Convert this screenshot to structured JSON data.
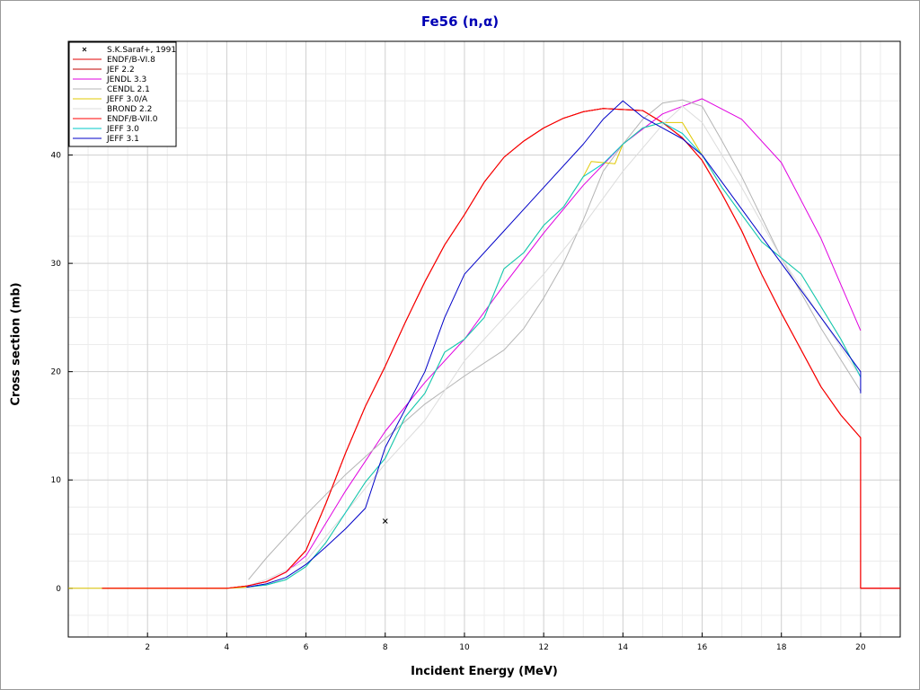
{
  "chart_data": {
    "type": "line",
    "title": "Fe56 (n,α)",
    "xlabel": "Incident Energy (MeV)",
    "ylabel": "Cross section (mb)",
    "xlim": [
      0,
      21
    ],
    "ylim": [
      -4.5,
      50.5
    ],
    "xticks": [
      2,
      4,
      6,
      8,
      10,
      12,
      14,
      16,
      18,
      20
    ],
    "yticks": [
      0,
      10,
      20,
      30,
      40
    ],
    "grid": true,
    "legend_position": "top-left",
    "points": {
      "name": "S.K.Saraf+, 1991",
      "marker": "x",
      "color": "#000000",
      "x": [
        8.0
      ],
      "y": [
        6.2
      ]
    },
    "series": [
      {
        "name": "ENDF/B-VI.8",
        "color": "#e00000",
        "x": [
          0.85,
          4.0,
          4.5,
          5.0,
          5.5,
          6.0,
          6.5,
          7.0,
          7.5,
          8.0,
          8.5,
          9.0,
          9.5,
          10.0,
          10.5,
          11.0,
          11.5,
          12.0,
          12.5,
          13.0,
          13.5,
          14.0,
          14.5,
          15.0,
          15.5,
          16.0,
          16.5,
          17.0,
          17.5,
          18.0,
          18.5,
          19.0,
          19.5,
          20.0,
          20.0,
          21.0
        ],
        "y": [
          0,
          0,
          0.2,
          0.6,
          1.5,
          3.5,
          7.8,
          12.5,
          16.8,
          20.5,
          24.5,
          28.3,
          31.7,
          34.5,
          37.5,
          39.8,
          41.3,
          42.5,
          43.4,
          44.0,
          44.3,
          44.2,
          44.1,
          43.0,
          41.6,
          39.5,
          36.4,
          33.0,
          29.0,
          25.4,
          22.0,
          18.6,
          16.0,
          13.9,
          0,
          0
        ]
      },
      {
        "name": "JEF 2.2",
        "color": "#c00000",
        "x": [
          0.85,
          4.0,
          4.5,
          5.0,
          5.5,
          6.0,
          6.5,
          7.0,
          7.5,
          8.0,
          8.5,
          9.0,
          9.5,
          10.0,
          10.5,
          11.0,
          11.5,
          12.0,
          12.5,
          13.0,
          13.5,
          14.0,
          14.5,
          15.0,
          15.5,
          16.0,
          16.5,
          17.0,
          17.5,
          18.0,
          18.5,
          19.0,
          19.5,
          20.0,
          20.0,
          21.0
        ],
        "y": [
          0,
          0,
          0.2,
          0.6,
          1.5,
          3.5,
          7.8,
          12.5,
          16.8,
          20.5,
          24.5,
          28.3,
          31.7,
          34.5,
          37.5,
          39.8,
          41.3,
          42.5,
          43.4,
          44.0,
          44.3,
          44.2,
          44.1,
          43.0,
          41.6,
          39.5,
          36.4,
          33.0,
          29.0,
          25.4,
          22.0,
          18.6,
          16.0,
          13.9,
          0,
          0
        ]
      },
      {
        "name": "JENDL 3.3",
        "color": "#e000e0",
        "x": [
          4.5,
          5.0,
          5.5,
          6.0,
          7.0,
          8.0,
          9.0,
          10.0,
          11.0,
          12.0,
          13.0,
          14.0,
          15.0,
          16.0,
          17.0,
          18.0,
          19.0,
          20.0
        ],
        "y": [
          0.2,
          0.6,
          1.5,
          3.0,
          9.0,
          14.5,
          19.0,
          23.0,
          28.0,
          32.8,
          37.2,
          41.0,
          43.8,
          45.2,
          43.3,
          39.3,
          32.3,
          23.8
        ]
      },
      {
        "name": "CENDL 2.1",
        "color": "#b4b4b4",
        "x": [
          4.55,
          5.0,
          6.0,
          7.0,
          8.0,
          9.0,
          10.0,
          11.0,
          11.5,
          12.0,
          12.5,
          13.0,
          13.5,
          14.0,
          14.5,
          15.0,
          15.5,
          16.0,
          16.5,
          17.0,
          18.0,
          19.0,
          20.0
        ],
        "y": [
          0.8,
          2.8,
          6.8,
          10.5,
          13.8,
          17.0,
          19.6,
          22.0,
          24.0,
          26.8,
          30.0,
          34.0,
          38.5,
          41.0,
          43.3,
          44.8,
          45.1,
          44.5,
          41.3,
          38.0,
          30.5,
          24.0,
          18.2
        ]
      },
      {
        "name": "JEFF 3.0/A",
        "color": "#e0c800",
        "x": [
          0.0,
          0.85,
          4.0,
          4.5,
          5.0,
          5.5,
          6.0,
          6.5,
          7.0,
          7.5,
          8.0,
          8.5,
          9.0,
          9.5,
          10.0,
          10.5,
          11.0,
          11.5,
          12.0,
          12.5,
          13.0,
          13.2,
          13.5,
          13.8,
          14.0,
          14.5,
          15.0,
          15.5,
          16.0,
          16.5,
          17.0,
          17.5,
          18.0,
          18.5,
          19.0,
          19.5,
          20.0
        ],
        "y": [
          0,
          0,
          0,
          0.1,
          0.3,
          0.8,
          2.0,
          4.2,
          7.0,
          9.8,
          12.0,
          15.8,
          18.0,
          21.8,
          23.0,
          25.0,
          29.5,
          31.0,
          33.5,
          35.2,
          38.0,
          39.4,
          39.3,
          39.2,
          41.0,
          42.5,
          43.0,
          43.0,
          40.0,
          37.0,
          34.5,
          32.0,
          30.5,
          29.0,
          26.0,
          23.0,
          19.5
        ]
      },
      {
        "name": "BROND 2.2",
        "color": "#dcdcdc",
        "x": [
          4.5,
          5.0,
          6.0,
          7.0,
          8.0,
          9.0,
          10.0,
          11.0,
          12.0,
          13.0,
          14.0,
          15.0,
          15.5,
          16.0,
          17.0,
          18.0,
          19.0,
          20.0
        ],
        "y": [
          0.2,
          0.8,
          2.5,
          7.0,
          11.5,
          15.5,
          21.0,
          25.0,
          29.0,
          33.5,
          38.5,
          42.8,
          44.5,
          43.0,
          37.0,
          30.5,
          25.0,
          19.5
        ]
      },
      {
        "name": "ENDF/B-VII.0",
        "color": "#ff0000",
        "x": [
          0.85,
          4.0,
          4.5,
          5.0,
          5.5,
          6.0,
          6.5,
          7.0,
          7.5,
          8.0,
          8.5,
          9.0,
          9.5,
          10.0,
          10.5,
          11.0,
          11.5,
          12.0,
          12.5,
          13.0,
          13.5,
          14.0,
          14.5,
          15.0,
          15.5,
          16.0,
          16.5,
          17.0,
          17.5,
          18.0,
          18.5,
          19.0,
          19.5,
          20.0,
          20.0,
          21.0
        ],
        "y": [
          0,
          0,
          0.2,
          0.6,
          1.5,
          3.5,
          7.8,
          12.5,
          16.8,
          20.5,
          24.5,
          28.3,
          31.7,
          34.5,
          37.5,
          39.8,
          41.3,
          42.5,
          43.4,
          44.0,
          44.3,
          44.2,
          44.1,
          43.0,
          41.6,
          39.5,
          36.4,
          33.0,
          29.0,
          25.4,
          22.0,
          18.6,
          16.0,
          13.9,
          0,
          0
        ]
      },
      {
        "name": "JEFF 3.0",
        "color": "#00c8c8",
        "x": [
          4.5,
          5.0,
          5.5,
          6.0,
          6.5,
          7.0,
          7.5,
          8.0,
          8.5,
          9.0,
          9.5,
          10.0,
          10.5,
          11.0,
          11.5,
          12.0,
          12.5,
          13.0,
          13.5,
          14.0,
          14.5,
          15.0,
          15.5,
          16.0,
          16.5,
          17.0,
          17.5,
          18.0,
          18.5,
          19.0,
          19.5,
          20.0
        ],
        "y": [
          0.1,
          0.3,
          0.8,
          2.0,
          4.2,
          7.0,
          9.8,
          12.0,
          15.8,
          18.0,
          21.8,
          23.0,
          25.0,
          29.5,
          31.0,
          33.5,
          35.2,
          38.0,
          39.2,
          41.0,
          42.5,
          43.0,
          42.0,
          40.0,
          37.0,
          34.5,
          32.0,
          30.5,
          29.0,
          26.0,
          23.0,
          19.5
        ]
      },
      {
        "name": "JEFF 3.1",
        "color": "#0000c8",
        "x": [
          4.5,
          5.0,
          5.5,
          6.0,
          6.5,
          7.0,
          7.5,
          8.0,
          9.0,
          9.5,
          10.0,
          11.0,
          12.0,
          13.0,
          13.5,
          14.0,
          14.5,
          15.0,
          15.5,
          16.0,
          17.0,
          18.0,
          19.0,
          20.0,
          20.0
        ],
        "y": [
          0.1,
          0.4,
          1.0,
          2.2,
          3.8,
          5.5,
          7.4,
          13.0,
          20.0,
          25.0,
          29.0,
          33.0,
          37.0,
          41.0,
          43.3,
          45.0,
          43.5,
          42.5,
          41.5,
          40.0,
          35.0,
          30.0,
          25.0,
          20.0,
          18.0
        ]
      }
    ]
  }
}
